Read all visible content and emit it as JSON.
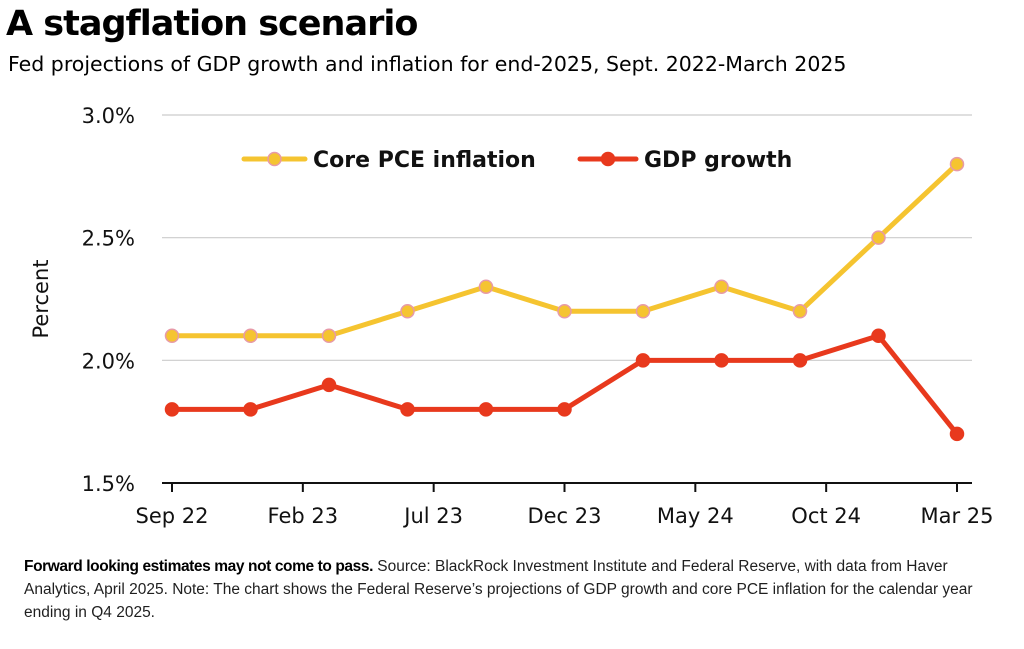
{
  "header": {
    "title": "A stagflation scenario",
    "subtitle": "Fed projections of GDP growth and inflation for end-2025, Sept. 2022-March 2025"
  },
  "chart_data": {
    "type": "line",
    "title": "A stagflation scenario",
    "subtitle": "Fed projections of GDP growth and inflation for end-2025, Sept. 2022-March 2025",
    "xlabel": "",
    "ylabel": "Percent",
    "ylim": [
      1.5,
      3.0
    ],
    "yticks": [
      1.5,
      2.0,
      2.5,
      3.0
    ],
    "ytick_labels": [
      "1.5%",
      "2.0%",
      "2.5%",
      "3.0%"
    ],
    "grid": "horizontal",
    "legend_position": "top",
    "x": [
      "Sep 22",
      "Dec 22",
      "Mar 23",
      "Jun 23",
      "Sep 23",
      "Dec 23",
      "Mar 24",
      "Jun 24",
      "Sep 24",
      "Dec 24",
      "Mar 25"
    ],
    "xtick_labels": [
      "Sep 22",
      "Feb 23",
      "Jul 23",
      "Dec 23",
      "May 24",
      "Oct 24",
      "Mar 25"
    ],
    "series": [
      {
        "name": "Core PCE inflation",
        "color": "#f5c430",
        "marker_edge": "#e79aa8",
        "values": [
          2.1,
          2.1,
          2.1,
          2.2,
          2.3,
          2.2,
          2.2,
          2.3,
          2.2,
          2.5,
          2.8
        ]
      },
      {
        "name": "GDP growth",
        "color": "#e8391d",
        "marker_edge": "#e8391d",
        "values": [
          1.8,
          1.8,
          1.9,
          1.8,
          1.8,
          1.8,
          2.0,
          2.0,
          2.0,
          2.1,
          1.7
        ]
      }
    ]
  },
  "footnote": {
    "lead": "Forward looking estimates may not come to pass.",
    "text": " Source: BlackRock Investment Institute and Federal Reserve, with data from Haver Analytics, April 2025. Note: The chart shows the Federal Reserve’s projections of GDP growth and core PCE inflation for the calendar year ending in Q4 2025."
  }
}
